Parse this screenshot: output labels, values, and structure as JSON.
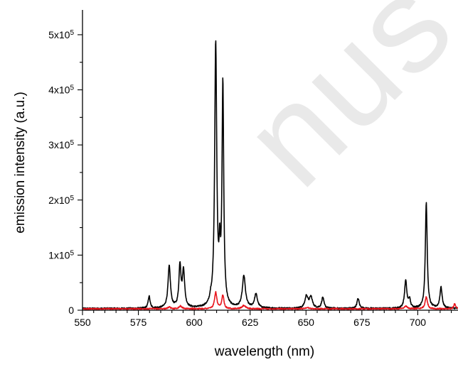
{
  "watermark": "nus",
  "chart_data": {
    "type": "line",
    "xlabel": "wavelength (nm)",
    "ylabel": "emission intensity (a.u.)",
    "xlim": [
      550,
      718
    ],
    "ylim": [
      0,
      545000
    ],
    "x_ticks": [
      550,
      575,
      600,
      625,
      650,
      675,
      700
    ],
    "y_ticks": [
      {
        "value": 0,
        "mant": "0",
        "exp": ""
      },
      {
        "value": 100000,
        "mant": "1x10",
        "exp": "5"
      },
      {
        "value": 200000,
        "mant": "2x10",
        "exp": "5"
      },
      {
        "value": 300000,
        "mant": "3x10",
        "exp": "5"
      },
      {
        "value": 400000,
        "mant": "4x10",
        "exp": "5"
      },
      {
        "value": 500000,
        "mant": "5x10",
        "exp": "5"
      }
    ],
    "grid": false,
    "series": [
      {
        "color": "#000000",
        "baseline": 3000,
        "peaks": [
          [
            579.8,
            22000,
            0.5
          ],
          [
            588.8,
            76000,
            0.65
          ],
          [
            593.6,
            76000,
            0.55
          ],
          [
            595.2,
            66000,
            0.6
          ],
          [
            607.3,
            8000,
            0.4
          ],
          [
            609.6,
            478000,
            0.55
          ],
          [
            611.4,
            78000,
            0.35
          ],
          [
            612.8,
            402000,
            0.45
          ],
          [
            622.2,
            58000,
            0.8
          ],
          [
            627.6,
            25000,
            0.8
          ],
          [
            650.2,
            22000,
            0.8
          ],
          [
            652.2,
            20000,
            0.8
          ],
          [
            657.5,
            20000,
            0.6
          ],
          [
            673.3,
            18000,
            0.6
          ],
          [
            694.6,
            50000,
            0.6
          ],
          [
            696.3,
            15000,
            0.5
          ],
          [
            703.8,
            192000,
            0.5
          ],
          [
            710.4,
            38000,
            0.6
          ]
        ]
      },
      {
        "color": "#e8141c",
        "baseline": 2500,
        "peaks": [
          [
            588.8,
            3000,
            0.7
          ],
          [
            593.8,
            5000,
            0.8
          ],
          [
            609.6,
            30000,
            0.6
          ],
          [
            612.8,
            25000,
            0.55
          ],
          [
            622.2,
            6000,
            0.9
          ],
          [
            650.5,
            2500,
            0.9
          ],
          [
            694.6,
            5000,
            0.8
          ],
          [
            703.8,
            22000,
            0.6
          ],
          [
            716.5,
            9000,
            0.5
          ]
        ]
      }
    ]
  }
}
